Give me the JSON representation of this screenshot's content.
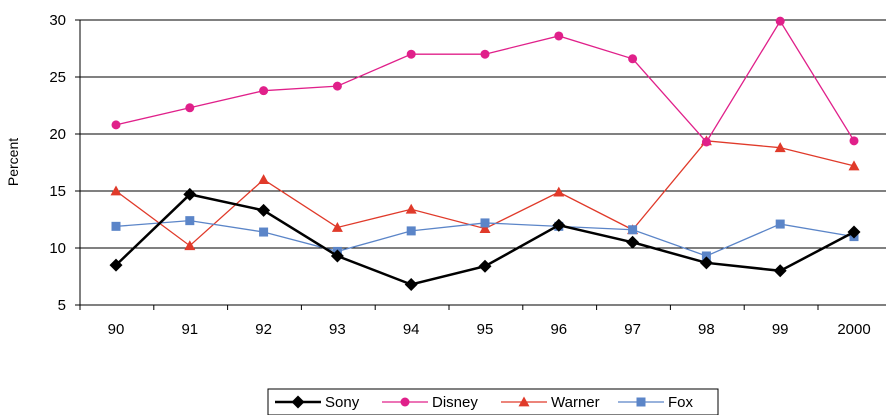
{
  "chart_data": {
    "type": "line",
    "title": "",
    "xlabel": "",
    "ylabel": "Percent",
    "categories": [
      "90",
      "91",
      "92",
      "93",
      "94",
      "95",
      "96",
      "97",
      "98",
      "99",
      "2000"
    ],
    "ylim": [
      5,
      30
    ],
    "yticks": [
      5,
      10,
      15,
      20,
      25,
      30
    ],
    "grid": true,
    "legend_position": "bottom",
    "series": [
      {
        "name": "Sony",
        "color": "#000000",
        "marker": "diamond",
        "values": [
          8.5,
          14.7,
          13.3,
          9.3,
          6.8,
          8.4,
          12.0,
          10.5,
          8.7,
          8.0,
          11.4
        ]
      },
      {
        "name": "Disney",
        "color": "#e0208a",
        "marker": "circle",
        "values": [
          20.8,
          22.3,
          23.8,
          24.2,
          27.0,
          27.0,
          28.6,
          26.6,
          19.3,
          29.9,
          19.4
        ]
      },
      {
        "name": "Warner",
        "color": "#e03a2a",
        "marker": "triangle",
        "values": [
          15.0,
          10.2,
          16.0,
          11.8,
          13.4,
          11.7,
          14.9,
          11.6,
          19.4,
          18.8,
          17.2
        ]
      },
      {
        "name": "Fox",
        "color": "#5b85c8",
        "marker": "square",
        "values": [
          11.9,
          12.4,
          11.4,
          9.7,
          11.5,
          12.2,
          11.9,
          11.6,
          9.3,
          12.1,
          11.0
        ]
      }
    ]
  }
}
